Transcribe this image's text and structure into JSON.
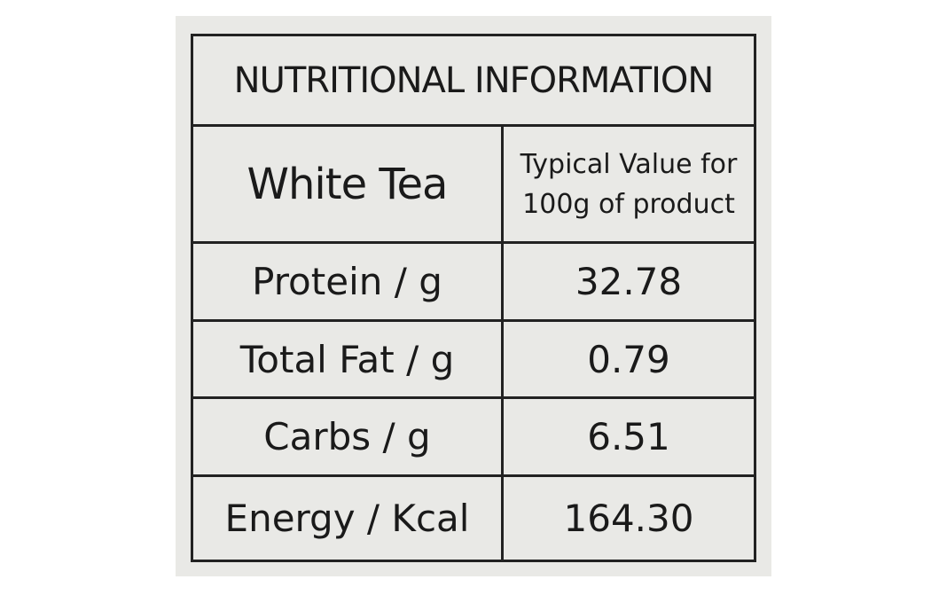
{
  "table": {
    "title": "NUTRITIONAL INFORMATION",
    "header": [
      "White Tea",
      "Typical Value for 100g of product"
    ],
    "rows": [
      [
        "Protein / g",
        "32.78"
      ],
      [
        "Total Fat / g",
        "0.79"
      ],
      [
        "Carbs / g",
        "6.51"
      ],
      [
        "Energy / Kcal",
        "164.30"
      ]
    ]
  }
}
